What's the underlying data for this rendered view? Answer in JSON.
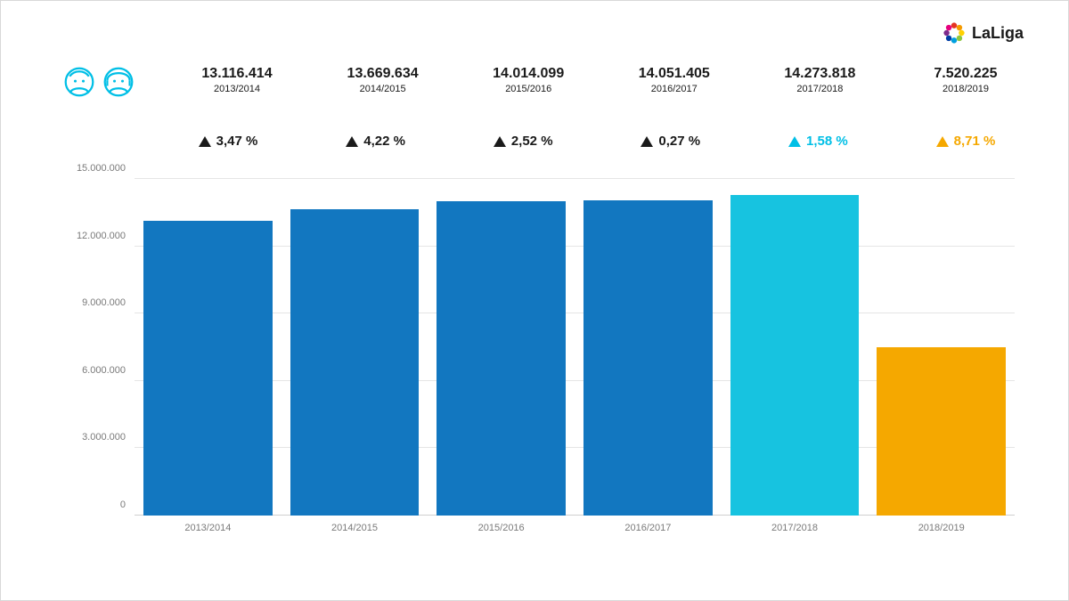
{
  "brand": {
    "text": "LaLiga",
    "text_color": "#1a1a1a",
    "dots": [
      "#e63423",
      "#f59a00",
      "#ffd100",
      "#8cc63f",
      "#00a0df",
      "#003da5",
      "#7d2b8b",
      "#e6007e"
    ]
  },
  "icons": {
    "head_stroke": "#00bfe6"
  },
  "stats": [
    {
      "value": "13.116.414",
      "season": "2013/2014"
    },
    {
      "value": "13.669.634",
      "season": "2014/2015"
    },
    {
      "value": "14.014.099",
      "season": "2015/2016"
    },
    {
      "value": "14.051.405",
      "season": "2016/2017"
    },
    {
      "value": "14.273.818",
      "season": "2017/2018"
    },
    {
      "value": "7.520.225",
      "season": "2018/2019"
    }
  ],
  "percent": [
    {
      "value": "3,47 %",
      "color": "#1a1a1a"
    },
    {
      "value": "4,22 %",
      "color": "#1a1a1a"
    },
    {
      "value": "2,52 %",
      "color": "#1a1a1a"
    },
    {
      "value": "0,27 %",
      "color": "#1a1a1a"
    },
    {
      "value": "1,58 %",
      "color": "#00bfe6"
    },
    {
      "value": "8,71 %",
      "color": "#f5a800"
    }
  ],
  "chart": {
    "type": "bar",
    "background_color": "#ffffff",
    "grid_color": "#e5e5e5",
    "axis_label_color": "#7a7a7a",
    "axis_label_fontsize": 11,
    "ylim": [
      0,
      15000000
    ],
    "ytick_step": 3000000,
    "yticks": [
      {
        "v": 0,
        "label": "0"
      },
      {
        "v": 3000000,
        "label": "3.000.000"
      },
      {
        "v": 6000000,
        "label": "6.000.000"
      },
      {
        "v": 9000000,
        "label": "9.000.000"
      },
      {
        "v": 12000000,
        "label": "12.000.000"
      },
      {
        "v": 15000000,
        "label": "15.000.000"
      }
    ],
    "categories": [
      "2013/2014",
      "2014/2015",
      "2015/2016",
      "2016/2017",
      "2017/2018",
      "2018/2019"
    ],
    "values": [
      13116414,
      13669634,
      14014099,
      14051405,
      14273818,
      7520225
    ],
    "bar_colors": [
      "#1277c0",
      "#1277c0",
      "#1277c0",
      "#1277c0",
      "#17c3e0",
      "#f5a800"
    ],
    "bar_width": 0.88
  }
}
